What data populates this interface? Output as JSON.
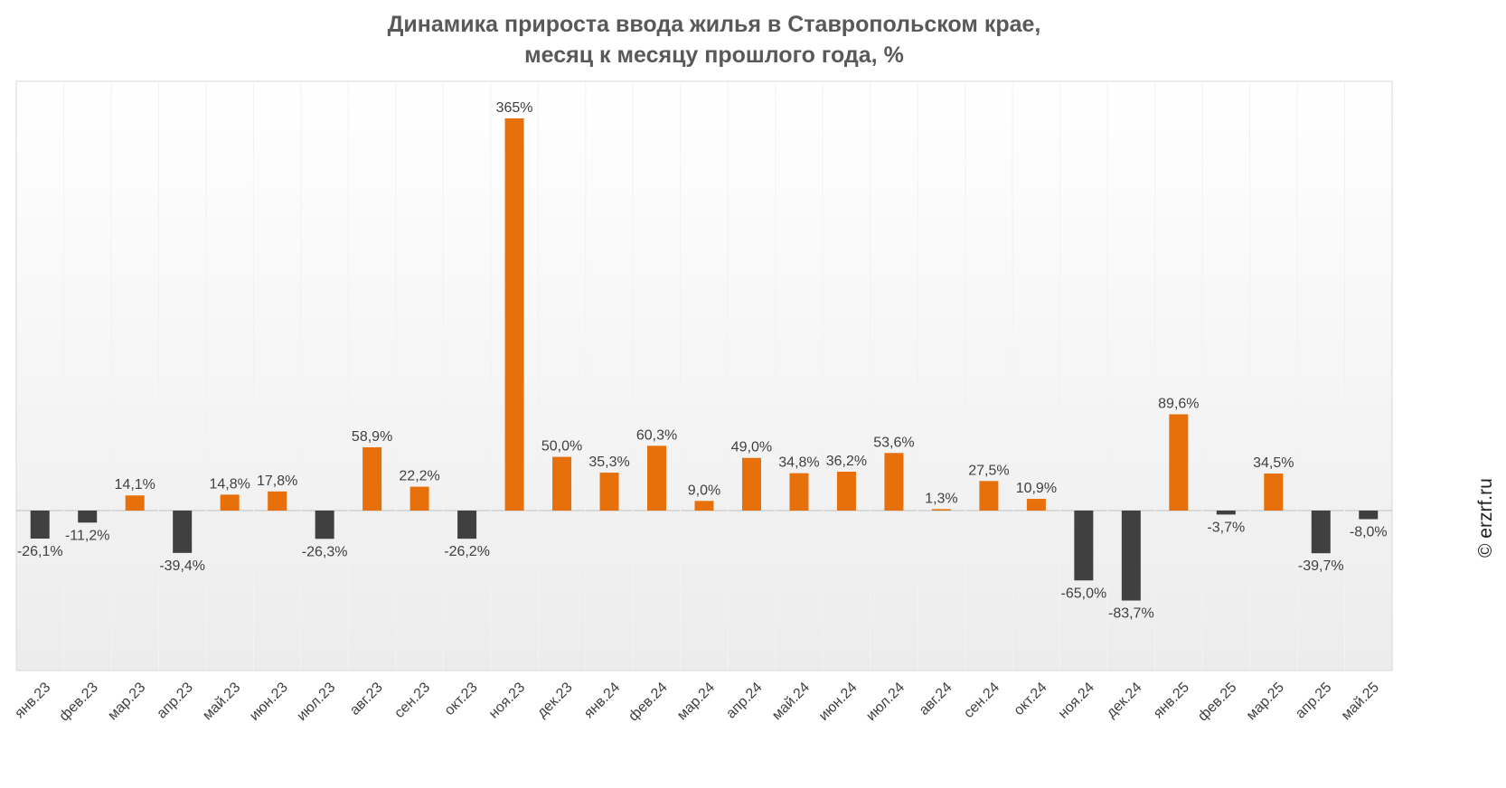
{
  "title_line1": "Динамика прироста ввода жилья в Ставропольском крае,",
  "title_line2": "месяц к месяцу прошлого года, %",
  "source": "© erzrf.ru",
  "colors": {
    "positive": "#E8700A",
    "negative": "#404040",
    "frame": "#d9d9d9",
    "text": "#404040"
  },
  "chart_data": {
    "type": "bar",
    "title": "Динамика прироста ввода жилья в Ставропольском крае, месяц к месяцу прошлого года, %",
    "categories": [
      "янв.23",
      "фев.23",
      "мар.23",
      "апр.23",
      "май.23",
      "июн.23",
      "июл.23",
      "авг.23",
      "сен.23",
      "окт.23",
      "ноя.23",
      "дек.23",
      "янв.24",
      "фев.24",
      "мар.24",
      "апр.24",
      "май.24",
      "июн.24",
      "июл.24",
      "авг.24",
      "сен.24",
      "окт.24",
      "ноя.24",
      "дек.24",
      "янв.25",
      "фев.25",
      "мар.25",
      "апр.25",
      "май.25"
    ],
    "values": [
      -26.1,
      -11.2,
      14.1,
      -39.4,
      14.8,
      17.8,
      -26.3,
      58.9,
      22.2,
      -26.2,
      365,
      50.0,
      35.3,
      60.3,
      9.0,
      49.0,
      34.8,
      36.2,
      53.6,
      1.3,
      27.5,
      10.9,
      -65.0,
      -83.7,
      89.6,
      -3.7,
      34.5,
      -39.7,
      -8.0
    ],
    "labels": [
      "-26,1%",
      "-11,2%",
      "14,1%",
      "-39,4%",
      "14,8%",
      "17,8%",
      "-26,3%",
      "58,9%",
      "22,2%",
      "-26,2%",
      "365%",
      "50,0%",
      "35,3%",
      "60,3%",
      "9,0%",
      "49,0%",
      "34,8%",
      "36,2%",
      "53,6%",
      "1,3%",
      "27,5%",
      "10,9%",
      "-65,0%",
      "-83,7%",
      "89,6%",
      "-3,7%",
      "34,5%",
      "-39,7%",
      "-8,0%"
    ],
    "xlabel": "",
    "ylabel": "",
    "ylim": [
      -145,
      400
    ],
    "grid": false,
    "legend": "none"
  }
}
